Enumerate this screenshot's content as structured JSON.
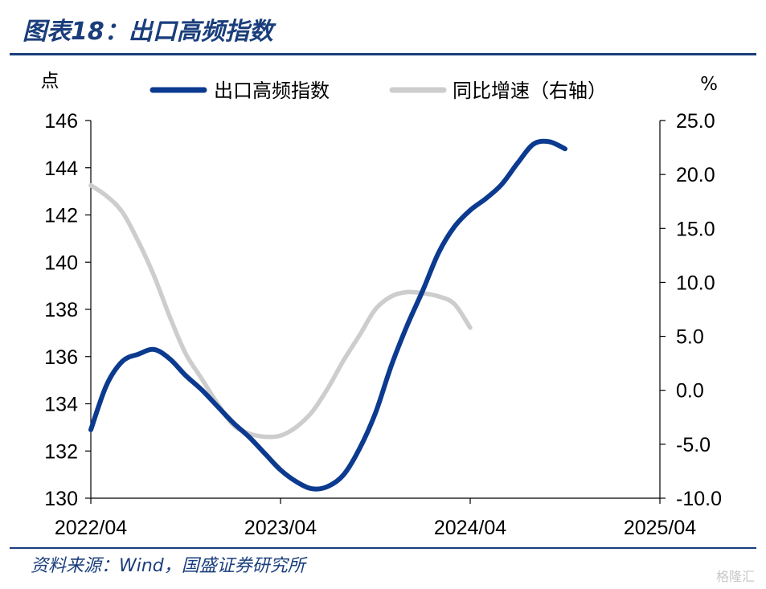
{
  "page": {
    "title": "图表18：出口高频指数",
    "source": "资料来源：Wind，国盛证券研究所",
    "watermark": "格隆汇"
  },
  "colors": {
    "primary": "#0b3a8f",
    "secondary": "#cdcdcd",
    "brand": "#1a3e7c",
    "axis": "#000000"
  },
  "chart_data": {
    "type": "line",
    "x_tick_labels": [
      "2022/04",
      "2023/04",
      "2024/04",
      "2025/04"
    ],
    "x_range": [
      0,
      36
    ],
    "y_left": {
      "unit": "点",
      "ylim": [
        130,
        146
      ],
      "ticks": [
        130,
        132,
        134,
        136,
        138,
        140,
        142,
        144,
        146
      ]
    },
    "y_right": {
      "unit": "%",
      "ylim": [
        -10,
        25
      ],
      "ticks": [
        "-10.0",
        "-5.0",
        "0.0",
        "5.0",
        "10.0",
        "15.0",
        "20.0",
        "25.0"
      ]
    },
    "grid": false,
    "legend_position": "top",
    "series": [
      {
        "name": "出口高频指数",
        "axis": "left",
        "color": "#0b3a8f",
        "x": [
          0,
          1,
          2,
          3,
          4,
          5,
          6,
          7,
          8,
          9,
          10,
          11,
          12,
          13,
          14,
          15,
          16,
          17,
          18,
          19,
          20,
          21,
          22,
          23,
          24,
          25,
          26,
          27,
          28,
          29,
          30,
          31,
          32,
          33,
          34,
          35,
          36
        ],
        "values": [
          132.9,
          134.8,
          135.8,
          136.1,
          136.3,
          135.9,
          135.2,
          134.6,
          133.9,
          133.2,
          132.6,
          131.9,
          131.2,
          130.7,
          130.4,
          130.5,
          131.0,
          132.1,
          133.6,
          135.6,
          137.3,
          138.8,
          140.4,
          141.5,
          142.2,
          142.7,
          143.3,
          144.2,
          145.0,
          145.1,
          144.8,
          null,
          null,
          null,
          null,
          null,
          null
        ]
      },
      {
        "name": "同比增速（右轴）",
        "axis": "right",
        "color": "#cdcdcd",
        "x": [
          0,
          1,
          2,
          3,
          4,
          5,
          6,
          7,
          8,
          9,
          10,
          11,
          12,
          13,
          14,
          15,
          16,
          17,
          18,
          19,
          20,
          21,
          22,
          23,
          24,
          25,
          26,
          27,
          28,
          29,
          30,
          31,
          32,
          33,
          34,
          35,
          36
        ],
        "values": [
          19.0,
          18.0,
          16.5,
          13.8,
          10.6,
          6.8,
          3.4,
          1.1,
          -1.2,
          -3.2,
          -4.0,
          -4.3,
          -4.2,
          -3.4,
          -2.0,
          0.2,
          2.8,
          5.1,
          7.5,
          8.7,
          9.1,
          9.0,
          8.7,
          8.0,
          5.8,
          null,
          null,
          null,
          null,
          null,
          null,
          null,
          null,
          null,
          null,
          null,
          null
        ]
      }
    ]
  }
}
